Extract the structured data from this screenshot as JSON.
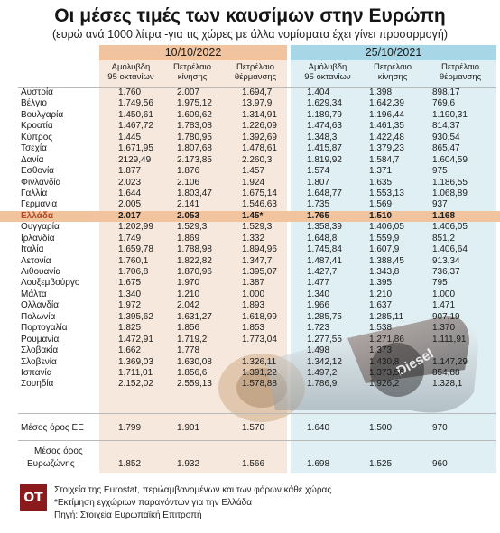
{
  "header": {
    "title": "Οι μέσες τιμές των καυσίμων στην Ευρώπη",
    "subtitle": "(ευρώ ανά 1000 λίτρα -για τις χώρες με άλλα νομίσματα έχει γίνει προσαρμογή)"
  },
  "periods": {
    "p2022": "10/10/2022",
    "p2021": "25/10/2021"
  },
  "columns": {
    "c2022": [
      {
        "line1": "Αμόλυβδη",
        "line2": "95 οκτανίων"
      },
      {
        "line1": "Πετρέλαιο",
        "line2": "κίνησης"
      },
      {
        "line1": "Πετρέλαιο",
        "line2": "θέρμανσης"
      }
    ],
    "c2021": [
      {
        "line1": "Αμόλυβδη",
        "line2": "95 οκτανίων"
      },
      {
        "line1": "Πετρέλαιο",
        "line2": "κίνησης"
      },
      {
        "line1": "Πετρέλαιο",
        "line2": "θέρμανσης"
      }
    ]
  },
  "rows": [
    {
      "country": "Αυστρία",
      "v": [
        "1.760",
        "2.007",
        "1.694,7",
        "1.404",
        "1.398",
        "898,17"
      ]
    },
    {
      "country": "Βέλγιο",
      "v": [
        "1.749,56",
        "1.975,12",
        "13.97,9",
        "1.629,34",
        "1.642,39",
        "769,6"
      ]
    },
    {
      "country": "Βουλγαρία",
      "v": [
        "1.450,61",
        "1.609,62",
        "1.314,91",
        "1.189,79",
        "1.196,44",
        "1.190,31"
      ]
    },
    {
      "country": "Κροατία",
      "v": [
        "1.467,72",
        "1.783,08",
        "1.226,09",
        "1.474,63",
        "1.461,35",
        "814,37"
      ]
    },
    {
      "country": "Κύπρος",
      "v": [
        "1.445",
        "1.780,95",
        "1.392,69",
        "1.348,3",
        "1.422,48",
        "930,54"
      ]
    },
    {
      "country": "Τσεχία",
      "v": [
        "1.671,95",
        "1.807,68",
        "1.478,61",
        "1.415,87",
        "1.379,23",
        "865,47"
      ]
    },
    {
      "country": "Δανία",
      "v": [
        "2129,49",
        "2.173,85",
        "2.260,3",
        "1.819,92",
        "1.584,7",
        "1.604,59"
      ]
    },
    {
      "country": "Εσθονία",
      "v": [
        "1.877",
        "1.876",
        "1.457",
        "1.574",
        "1.371",
        "975"
      ]
    },
    {
      "country": "Φινλανδία",
      "v": [
        "2.023",
        "2.106",
        "1.924",
        "1.807",
        "1.635",
        "1.186,55"
      ]
    },
    {
      "country": "Γαλλία",
      "v": [
        "1.644",
        "1.803,47",
        "1.675,14",
        "1.648,77",
        "1.553,13",
        "1.068,89"
      ]
    },
    {
      "country": "Γερμανία",
      "v": [
        "2.005",
        "2.141",
        "1.546,63",
        "1.735",
        "1.569",
        "937"
      ]
    },
    {
      "country": "Ελλάδα",
      "v": [
        "2.017",
        "2.053",
        "1.45*",
        "1.765",
        "1.510",
        "1.168"
      ],
      "highlight": true
    },
    {
      "country": "Ουγγαρία",
      "v": [
        "1.202,99",
        "1.529,3",
        "1.529,3",
        "1.358,39",
        "1.406,05",
        "1.406,05"
      ]
    },
    {
      "country": "Ιρλανδία",
      "v": [
        "1.749",
        "1.869",
        "1.332",
        "1.648,8",
        "1.559,9",
        "851,2"
      ]
    },
    {
      "country": "Ιταλία",
      "v": [
        "1.659,78",
        "1.788,98",
        "1.894,96",
        "1.745,84",
        "1.607,9",
        "1.406,64"
      ]
    },
    {
      "country": "Λετονία",
      "v": [
        "1.760,1",
        "1.822,82",
        "1.347,7",
        "1.487,41",
        "1.388,45",
        "913,34"
      ]
    },
    {
      "country": "Λιθουανία",
      "v": [
        "1.706,8",
        "1.870,96",
        "1.395,07",
        "1.427,7",
        "1.343,8",
        "736,37"
      ]
    },
    {
      "country": "Λουξεμβούργο",
      "v": [
        "1.675",
        "1.970",
        "1.387",
        "1.477",
        "1.395",
        "795"
      ]
    },
    {
      "country": "Μάλτα",
      "v": [
        "1.340",
        "1.210",
        "1.000",
        "1.340",
        "1.210",
        "1.000"
      ]
    },
    {
      "country": "Ολλανδία",
      "v": [
        "1.972",
        "2.042",
        "1.893",
        "1.966",
        "1.637",
        "1.471"
      ]
    },
    {
      "country": "Πολωνία",
      "v": [
        "1.395,62",
        "1.631,27",
        "1.618,99",
        "1.285,75",
        "1.285,11",
        "907,19"
      ]
    },
    {
      "country": "Πορτογαλία",
      "v": [
        "1.825",
        "1.856",
        "1.853",
        "1.723",
        "1.538",
        "1.370"
      ]
    },
    {
      "country": "Ρουμανία",
      "v": [
        "1.472,91",
        "1.719,2",
        "1.773,04",
        "1.277,55",
        "1.271,86",
        "1.111,91"
      ]
    },
    {
      "country": "Σλοβακία",
      "v": [
        "1.662",
        "1.778",
        "",
        "1.498",
        "1.373",
        ""
      ]
    },
    {
      "country": "Σλοβενία",
      "v": [
        "1.369,03",
        "1.630,08",
        "1.326,11",
        "1.342,12",
        "1.430,8",
        "1.147,29"
      ]
    },
    {
      "country": "Ισπανία",
      "v": [
        "1.711,01",
        "1.856,6",
        "1.391,22",
        "1.497,2",
        "1.373,56",
        "854,88"
      ]
    },
    {
      "country": "Σουηδία",
      "v": [
        "2.152,02",
        "2.559,13",
        "1.578,88",
        "1.786,9",
        "1.926,2",
        "1.328,1"
      ]
    }
  ],
  "averages": {
    "eu": {
      "label": "Μέσος όρος ΕΕ",
      "v": [
        "1.799",
        "1.901",
        "1.570",
        "1.640",
        "1.500",
        "970"
      ]
    },
    "eurozone": {
      "label1": "Μέσος όρος",
      "label2": "Ευρωζώνης",
      "v": [
        "1.852",
        "1.932",
        "1.566",
        "1.698",
        "1.525",
        "960"
      ]
    }
  },
  "footer": {
    "logo": "OT",
    "note1": "Στοιχεία της Eurostat, περιλαμβανομένων και των φόρων κάθε χώρας",
    "note2": "*Εκτίμηση εγχώριων παραγόντων για την Ελλάδα",
    "note3": "Πηγή: Στοιχεία Ευρωπαϊκή Επιτροπή"
  },
  "photo": {
    "label": "Diesel"
  },
  "colors": {
    "panel_2022": "#f6e8dc",
    "header_2022": "#f2c39f",
    "panel_2021": "#dfeff4",
    "header_2021": "#a7d6e6",
    "highlight": "#f1c49e",
    "highlight_text": "#b1492a",
    "logo": "#8b1a1d"
  }
}
